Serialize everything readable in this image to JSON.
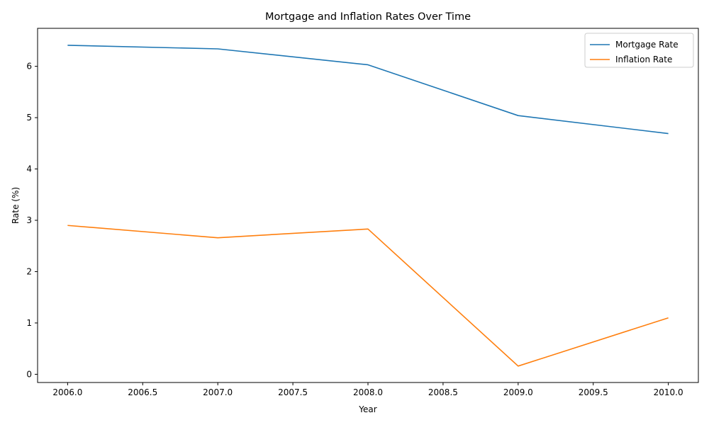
{
  "chart_data": {
    "type": "line",
    "title": "Mortgage and Inflation Rates Over Time",
    "xlabel": "Year",
    "ylabel": "Rate (%)",
    "x": [
      2006,
      2007,
      2008,
      2009,
      2010
    ],
    "xlim": [
      2005.8,
      2010.2
    ],
    "ylim": [
      -0.16,
      6.74
    ],
    "x_ticks": [
      2006.0,
      2006.5,
      2007.0,
      2007.5,
      2008.0,
      2008.5,
      2009.0,
      2009.5,
      2010.0
    ],
    "x_tick_labels": [
      "2006.0",
      "2006.5",
      "2007.0",
      "2007.5",
      "2008.0",
      "2008.5",
      "2009.0",
      "2009.5",
      "2010.0"
    ],
    "y_ticks": [
      0,
      1,
      2,
      3,
      4,
      5,
      6
    ],
    "y_tick_labels": [
      "0",
      "1",
      "2",
      "3",
      "4",
      "5",
      "6"
    ],
    "grid": false,
    "legend_position": "top-right",
    "series": [
      {
        "name": "Mortgage Rate",
        "color": "#1f77b4",
        "values": [
          6.41,
          6.34,
          6.03,
          5.04,
          4.69
        ]
      },
      {
        "name": "Inflation Rate",
        "color": "#ff7f0e",
        "values": [
          2.9,
          2.66,
          2.83,
          0.16,
          1.1
        ]
      }
    ]
  }
}
